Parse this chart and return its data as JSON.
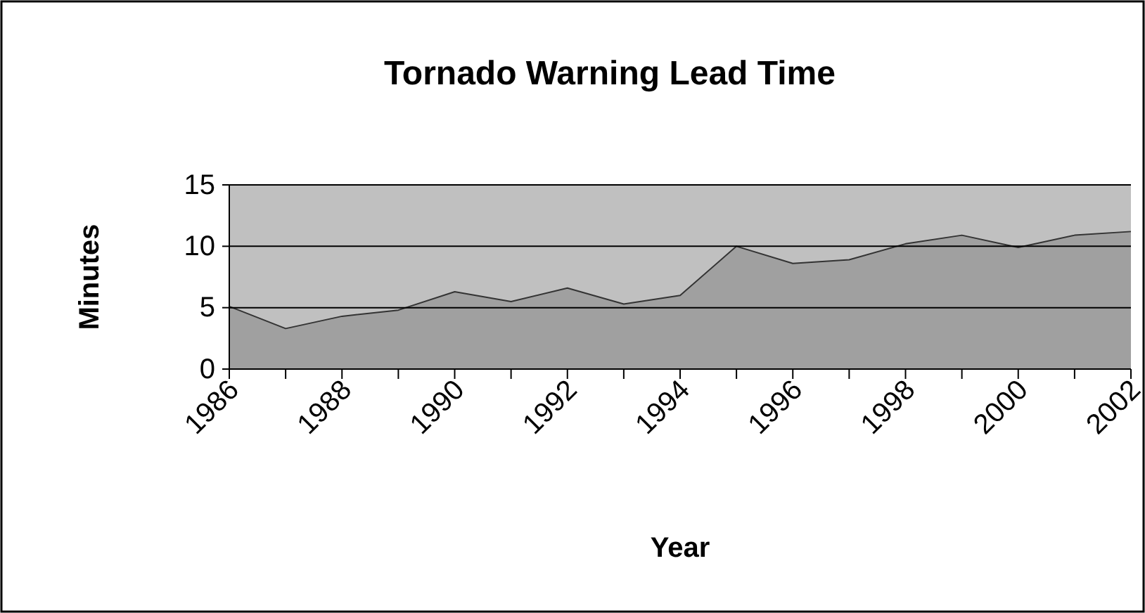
{
  "chart_data": {
    "type": "area",
    "title": "Tornado Warning Lead Time",
    "xlabel": "Year",
    "ylabel": "Minutes",
    "x": [
      1986,
      1987,
      1988,
      1989,
      1990,
      1991,
      1992,
      1993,
      1994,
      1995,
      1996,
      1997,
      1998,
      1999,
      2000,
      2001,
      2002
    ],
    "series": [
      {
        "color": "#a0a0a0",
        "values": [
          5.1,
          3.3,
          4.3,
          4.8,
          6.3,
          5.5,
          6.6,
          5.3,
          6.0,
          10.0,
          8.6,
          8.9,
          10.2,
          10.9,
          9.9,
          10.9,
          11.2
        ]
      }
    ],
    "xlim": [
      1986,
      2002
    ],
    "xticks": [
      1986,
      {
        "value": 1987,
        "label": null
      },
      1988,
      {
        "value": 1989,
        "label": null
      },
      1990,
      {
        "value": 1991,
        "label": null
      },
      1992,
      {
        "value": 1993,
        "label": null
      },
      1994,
      {
        "value": 1995,
        "label": null
      },
      1996,
      {
        "value": 1997,
        "label": null
      },
      1998,
      {
        "value": 1999,
        "label": null
      },
      2000,
      {
        "value": 2001,
        "label": null
      },
      2002
    ],
    "ylim": [
      0,
      15
    ],
    "yticks": [
      0,
      5,
      10,
      15
    ],
    "grid": "y"
  }
}
